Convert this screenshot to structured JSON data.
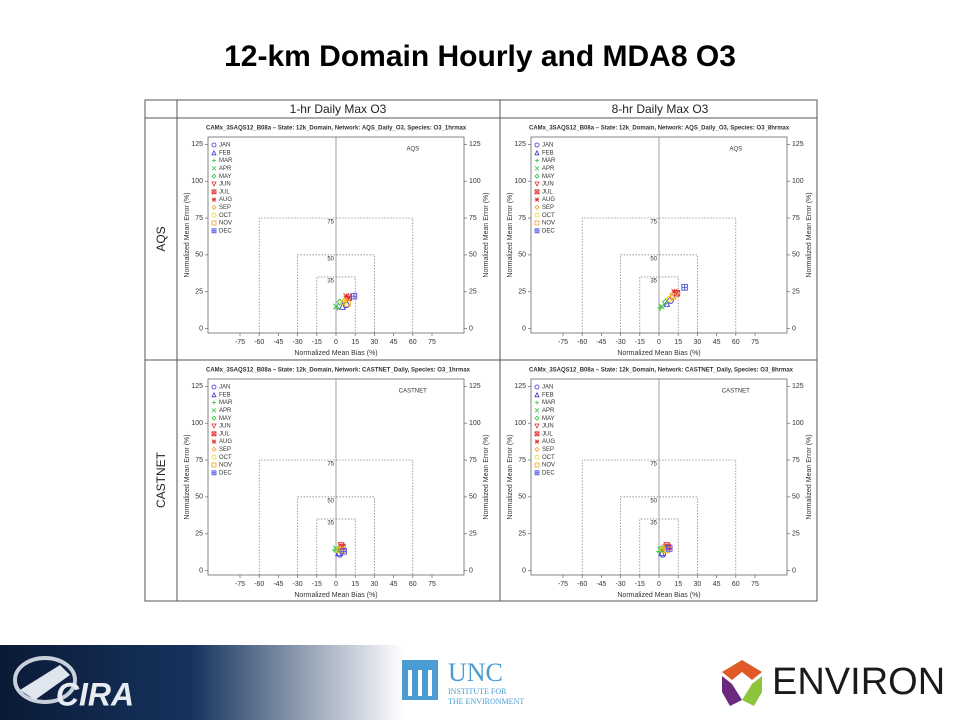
{
  "slide": {
    "title": "12-km Domain Hourly and MDA8 O3",
    "columns": [
      "1-hr Daily Max O3",
      "8-hr Daily Max O3"
    ],
    "rows": [
      "AQS",
      "CASTNET"
    ]
  },
  "footer": {
    "cira": "CIRA",
    "unc": "UNC",
    "unc_sub": [
      "INSTITUTE FOR",
      "THE ENVIRONMENT"
    ],
    "environ": "ENVIRON"
  },
  "chart_data": [
    {
      "type": "scatter",
      "title": "CAMx_3SAQS12_B08a – State: 12k_Domain, Network: AQS_Daily_O3, Species: O3_1hrmax",
      "network": "AQS",
      "xlabel": "Normalized Mean Bias (%)",
      "ylabel": "Normalized Mean Error (%)",
      "xlim": [
        -100,
        100
      ],
      "ylim": [
        -3,
        130
      ],
      "xticks": [
        -75,
        -60,
        -45,
        -30,
        -15,
        0,
        15,
        30,
        45,
        60,
        75
      ],
      "yticks": [
        0,
        25,
        50,
        75,
        100,
        125
      ],
      "goal_criteria": [
        {
          "nmb": 15,
          "nme": 35
        },
        {
          "nmb": 30,
          "nme": 50
        },
        {
          "nmb": 60,
          "nme": 75
        }
      ],
      "series": [
        {
          "name": "JAN",
          "color": "#3a3ad0",
          "marker": "circle",
          "x": [
            8
          ],
          "y": [
            16
          ]
        },
        {
          "name": "FEB",
          "color": "#3a3ad0",
          "marker": "triangle",
          "x": [
            5
          ],
          "y": [
            15
          ]
        },
        {
          "name": "MAR",
          "color": "#33c040",
          "marker": "plus",
          "x": [
            1
          ],
          "y": [
            14
          ]
        },
        {
          "name": "APR",
          "color": "#33c040",
          "marker": "cross",
          "x": [
            0
          ],
          "y": [
            15
          ]
        },
        {
          "name": "MAY",
          "color": "#33c040",
          "marker": "diamond",
          "x": [
            3
          ],
          "y": [
            18
          ]
        },
        {
          "name": "JUN",
          "color": "#e03030",
          "marker": "down",
          "x": [
            9
          ],
          "y": [
            20
          ]
        },
        {
          "name": "JUL",
          "color": "#e03030",
          "marker": "boxx",
          "x": [
            10
          ],
          "y": [
            21
          ]
        },
        {
          "name": "AUG",
          "color": "#e03030",
          "marker": "star",
          "x": [
            8
          ],
          "y": [
            22
          ]
        },
        {
          "name": "SEP",
          "color": "#f0a020",
          "marker": "diamond",
          "x": [
            7
          ],
          "y": [
            19
          ]
        },
        {
          "name": "OCT",
          "color": "#e8d820",
          "marker": "circle",
          "x": [
            6
          ],
          "y": [
            18
          ]
        },
        {
          "name": "NOV",
          "color": "#f0a020",
          "marker": "square",
          "x": [
            9
          ],
          "y": [
            17
          ]
        },
        {
          "name": "DEC",
          "color": "#5050e0",
          "marker": "boxplus",
          "x": [
            14
          ],
          "y": [
            22
          ]
        }
      ]
    },
    {
      "type": "scatter",
      "title": "CAMx_3SAQS12_B08a – State: 12k_Domain, Network: AQS_Daily_O3, Species: O3_8hrmax",
      "network": "AQS",
      "xlabel": "Normalized Mean Bias (%)",
      "ylabel": "Normalized Mean Error (%)",
      "xlim": [
        -100,
        100
      ],
      "ylim": [
        -3,
        130
      ],
      "xticks": [
        -75,
        -60,
        -45,
        -30,
        -15,
        0,
        15,
        30,
        45,
        60,
        75
      ],
      "yticks": [
        0,
        25,
        50,
        75,
        100,
        125
      ],
      "goal_criteria": [
        {
          "nmb": 15,
          "nme": 35
        },
        {
          "nmb": 30,
          "nme": 50
        },
        {
          "nmb": 60,
          "nme": 75
        }
      ],
      "series": [
        {
          "name": "JAN",
          "color": "#3a3ad0",
          "marker": "circle",
          "x": [
            9
          ],
          "y": [
            19
          ]
        },
        {
          "name": "FEB",
          "color": "#3a3ad0",
          "marker": "triangle",
          "x": [
            6
          ],
          "y": [
            17
          ]
        },
        {
          "name": "MAR",
          "color": "#33c040",
          "marker": "plus",
          "x": [
            1
          ],
          "y": [
            14
          ]
        },
        {
          "name": "APR",
          "color": "#33c040",
          "marker": "cross",
          "x": [
            2
          ],
          "y": [
            15
          ]
        },
        {
          "name": "MAY",
          "color": "#33c040",
          "marker": "diamond",
          "x": [
            5
          ],
          "y": [
            18
          ]
        },
        {
          "name": "JUN",
          "color": "#e03030",
          "marker": "down",
          "x": [
            13
          ],
          "y": [
            24
          ]
        },
        {
          "name": "JUL",
          "color": "#e03030",
          "marker": "boxx",
          "x": [
            14
          ],
          "y": [
            24
          ]
        },
        {
          "name": "AUG",
          "color": "#e03030",
          "marker": "star",
          "x": [
            12
          ],
          "y": [
            25
          ]
        },
        {
          "name": "SEP",
          "color": "#f0a020",
          "marker": "diamond",
          "x": [
            10
          ],
          "y": [
            21
          ]
        },
        {
          "name": "OCT",
          "color": "#e8d820",
          "marker": "circle",
          "x": [
            8
          ],
          "y": [
            20
          ]
        },
        {
          "name": "NOV",
          "color": "#f0a020",
          "marker": "square",
          "x": [
            11
          ],
          "y": [
            22
          ]
        },
        {
          "name": "DEC",
          "color": "#5050e0",
          "marker": "boxplus",
          "x": [
            20
          ],
          "y": [
            28
          ]
        }
      ]
    },
    {
      "type": "scatter",
      "title": "CAMx_3SAQS12_B08a – State: 12k_Domain, Network: CASTNET_Daily, Species: O3_1hrmax",
      "network": "CASTNET",
      "xlabel": "Normalized Mean Bias (%)",
      "ylabel": "Normalized Mean Error (%)",
      "xlim": [
        -100,
        100
      ],
      "ylim": [
        -3,
        130
      ],
      "xticks": [
        -75,
        -60,
        -45,
        -30,
        -15,
        0,
        15,
        30,
        45,
        60,
        75
      ],
      "yticks": [
        0,
        25,
        50,
        75,
        100,
        125
      ],
      "goal_criteria": [
        {
          "nmb": 15,
          "nme": 35
        },
        {
          "nmb": 30,
          "nme": 50
        },
        {
          "nmb": 60,
          "nme": 75
        }
      ],
      "series": [
        {
          "name": "JAN",
          "color": "#3a3ad0",
          "marker": "circle",
          "x": [
            3
          ],
          "y": [
            11
          ]
        },
        {
          "name": "FEB",
          "color": "#3a3ad0",
          "marker": "triangle",
          "x": [
            2
          ],
          "y": [
            12
          ]
        },
        {
          "name": "MAR",
          "color": "#33c040",
          "marker": "plus",
          "x": [
            -1
          ],
          "y": [
            14
          ]
        },
        {
          "name": "APR",
          "color": "#33c040",
          "marker": "cross",
          "x": [
            0
          ],
          "y": [
            15
          ]
        },
        {
          "name": "MAY",
          "color": "#33c040",
          "marker": "diamond",
          "x": [
            1
          ],
          "y": [
            14
          ]
        },
        {
          "name": "JUN",
          "color": "#e03030",
          "marker": "down",
          "x": [
            4
          ],
          "y": [
            17
          ]
        },
        {
          "name": "JUL",
          "color": "#e03030",
          "marker": "boxx",
          "x": [
            5
          ],
          "y": [
            16
          ]
        },
        {
          "name": "AUG",
          "color": "#e03030",
          "marker": "star",
          "x": [
            4
          ],
          "y": [
            16
          ]
        },
        {
          "name": "SEP",
          "color": "#f0a020",
          "marker": "diamond",
          "x": [
            3
          ],
          "y": [
            15
          ]
        },
        {
          "name": "OCT",
          "color": "#e8d820",
          "marker": "circle",
          "x": [
            2
          ],
          "y": [
            14
          ]
        },
        {
          "name": "NOV",
          "color": "#f0a020",
          "marker": "square",
          "x": [
            5
          ],
          "y": [
            14
          ]
        },
        {
          "name": "DEC",
          "color": "#5050e0",
          "marker": "boxplus",
          "x": [
            6
          ],
          "y": [
            13
          ]
        }
      ]
    },
    {
      "type": "scatter",
      "title": "CAMx_3SAQS12_B08a – State: 12k_Domain, Network: CASTNET_Daily, Species: O3_8hrmax",
      "network": "CASTNET",
      "xlabel": "Normalized Mean Bias (%)",
      "ylabel": "Normalized Mean Error (%)",
      "xlim": [
        -100,
        100
      ],
      "ylim": [
        -3,
        130
      ],
      "xticks": [
        -75,
        -60,
        -45,
        -30,
        -15,
        0,
        15,
        30,
        45,
        60,
        75
      ],
      "yticks": [
        0,
        25,
        50,
        75,
        100,
        125
      ],
      "goal_criteria": [
        {
          "nmb": 15,
          "nme": 35
        },
        {
          "nmb": 30,
          "nme": 50
        },
        {
          "nmb": 60,
          "nme": 75
        }
      ],
      "series": [
        {
          "name": "JAN",
          "color": "#3a3ad0",
          "marker": "circle",
          "x": [
            3
          ],
          "y": [
            11
          ]
        },
        {
          "name": "FEB",
          "color": "#3a3ad0",
          "marker": "triangle",
          "x": [
            2
          ],
          "y": [
            12
          ]
        },
        {
          "name": "MAR",
          "color": "#33c040",
          "marker": "plus",
          "x": [
            0
          ],
          "y": [
            13
          ]
        },
        {
          "name": "APR",
          "color": "#33c040",
          "marker": "cross",
          "x": [
            1
          ],
          "y": [
            14
          ]
        },
        {
          "name": "MAY",
          "color": "#33c040",
          "marker": "diamond",
          "x": [
            2
          ],
          "y": [
            15
          ]
        },
        {
          "name": "JUN",
          "color": "#e03030",
          "marker": "down",
          "x": [
            6
          ],
          "y": [
            17
          ]
        },
        {
          "name": "JUL",
          "color": "#e03030",
          "marker": "boxx",
          "x": [
            7
          ],
          "y": [
            16
          ]
        },
        {
          "name": "AUG",
          "color": "#e03030",
          "marker": "star",
          "x": [
            5
          ],
          "y": [
            16
          ]
        },
        {
          "name": "SEP",
          "color": "#f0a020",
          "marker": "diamond",
          "x": [
            4
          ],
          "y": [
            15
          ]
        },
        {
          "name": "OCT",
          "color": "#e8d820",
          "marker": "circle",
          "x": [
            3
          ],
          "y": [
            14
          ]
        },
        {
          "name": "NOV",
          "color": "#f0a020",
          "marker": "square",
          "x": [
            6
          ],
          "y": [
            14
          ]
        },
        {
          "name": "DEC",
          "color": "#5050e0",
          "marker": "boxplus",
          "x": [
            8
          ],
          "y": [
            15
          ]
        }
      ]
    }
  ]
}
